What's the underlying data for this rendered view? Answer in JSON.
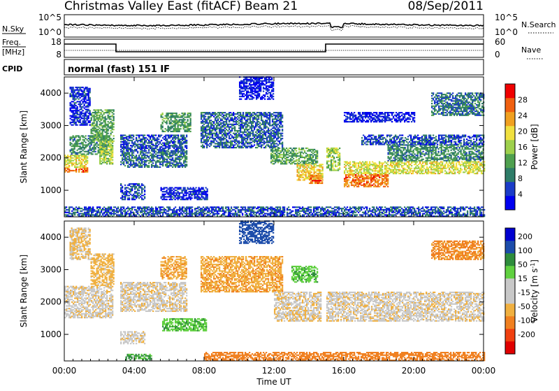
{
  "header": {
    "title": "Christmas Valley East (fitACF)",
    "beam": "Beam 21",
    "date": "08/Sep/2011"
  },
  "panels": {
    "nsky": {
      "left_label": "N.Sky",
      "left_ticks": [
        "10^5",
        "10^0"
      ],
      "right_ticks": [
        "10^5",
        "10^0"
      ],
      "right_label": "N.Search"
    },
    "freq": {
      "left_label_1": "Freq.",
      "left_label_2": "[MHz]",
      "left_ticks": [
        "18",
        "8"
      ],
      "right_ticks": [
        "60",
        "0"
      ],
      "right_label": "Nave"
    },
    "cpid": {
      "label": "CPID",
      "text": "normal (fast) 151 IF"
    }
  },
  "colors": {
    "power": [
      "#0000f0",
      "#1b3cc8",
      "#2e7c68",
      "#4fa04f",
      "#9ed04c",
      "#f0e040",
      "#f0a020",
      "#f06010",
      "#f00000"
    ],
    "velocity": [
      "#e00000",
      "#f04010",
      "#f08020",
      "#f0b040",
      "#c8c8c8",
      "#c8c8c8",
      "#60d040",
      "#2e8c3c",
      "#1c4caa",
      "#0000d0"
    ]
  },
  "chart_data": [
    {
      "type": "heatmap",
      "name": "power",
      "xlabel": "",
      "ylabel": "Slant Range [km]",
      "x_ticks": [
        "00:00",
        "04:00",
        "08:00",
        "12:00",
        "16:00",
        "20:00",
        "00:00"
      ],
      "y_ticks": [
        "1000",
        "2000",
        "3000",
        "4000"
      ],
      "colorbar_label": "Power [dB]",
      "colorbar_ticks": [
        "4",
        "8",
        "12",
        "16",
        "20",
        "24",
        "28"
      ],
      "x_range_hours": [
        0,
        24
      ],
      "y_range_km": [
        180,
        4500
      ],
      "bands": [
        {
          "t": [
            0.0,
            1.3
          ],
          "r": [
            1550,
            1700
          ],
          "v": 27
        },
        {
          "t": [
            0.0,
            1.3
          ],
          "r": [
            1700,
            2100
          ],
          "v": 20
        },
        {
          "t": [
            0.3,
            2.4
          ],
          "r": [
            2100,
            2700
          ],
          "v": 12
        },
        {
          "t": [
            1.5,
            2.8
          ],
          "r": [
            2500,
            3500
          ],
          "v": 14
        },
        {
          "t": [
            2.0,
            2.8
          ],
          "r": [
            1800,
            2500
          ],
          "v": 18
        },
        {
          "t": [
            0.3,
            1.5
          ],
          "r": [
            3000,
            4200
          ],
          "v": 6
        },
        {
          "t": [
            3.2,
            7.0
          ],
          "r": [
            1700,
            2200
          ],
          "v": 10
        },
        {
          "t": [
            3.2,
            7.0
          ],
          "r": [
            2200,
            2700
          ],
          "v": 8
        },
        {
          "t": [
            5.5,
            7.2
          ],
          "r": [
            2800,
            3400
          ],
          "v": 13
        },
        {
          "t": [
            3.2,
            4.6
          ],
          "r": [
            700,
            1200
          ],
          "v": 8
        },
        {
          "t": [
            5.5,
            8.2
          ],
          "r": [
            700,
            1100
          ],
          "v": 6
        },
        {
          "t": [
            7.8,
            12.5
          ],
          "r": [
            2300,
            3400
          ],
          "v": 9
        },
        {
          "t": [
            10.0,
            12.0
          ],
          "r": [
            3800,
            4500
          ],
          "v": 5
        },
        {
          "t": [
            11.8,
            14.5
          ],
          "r": [
            1800,
            2300
          ],
          "v": 14
        },
        {
          "t": [
            13.3,
            14.8
          ],
          "r": [
            1300,
            1800
          ],
          "v": 22
        },
        {
          "t": [
            14.0,
            14.8
          ],
          "r": [
            1200,
            1450
          ],
          "v": 27
        },
        {
          "t": [
            15.0,
            15.8
          ],
          "r": [
            1600,
            2300
          ],
          "v": 17
        },
        {
          "t": [
            16.0,
            18.5
          ],
          "r": [
            1100,
            1500
          ],
          "v": 27
        },
        {
          "t": [
            16.0,
            24.0
          ],
          "r": [
            1500,
            1900
          ],
          "v": 20
        },
        {
          "t": [
            18.5,
            24.0
          ],
          "r": [
            1900,
            2400
          ],
          "v": 12
        },
        {
          "t": [
            17.0,
            24.0
          ],
          "r": [
            2400,
            2700
          ],
          "v": 8
        },
        {
          "t": [
            21.0,
            24.0
          ],
          "r": [
            3300,
            4000
          ],
          "v": 10
        },
        {
          "t": [
            16.0,
            20.0
          ],
          "r": [
            3100,
            3400
          ],
          "v": 5
        },
        {
          "t": [
            0.0,
            24.0
          ],
          "r": [
            180,
            500
          ],
          "v": 8
        }
      ]
    },
    {
      "type": "heatmap",
      "name": "velocity",
      "xlabel": "Time UT",
      "ylabel": "Slant Range [km]",
      "x_ticks": [
        "00:00",
        "04:00",
        "08:00",
        "12:00",
        "16:00",
        "20:00",
        "00:00"
      ],
      "y_ticks": [
        "1000",
        "2000",
        "3000",
        "4000"
      ],
      "colorbar_label": "Velocity [m s^-1]",
      "colorbar_ticks": [
        "200",
        "100",
        "50",
        "15",
        "-15",
        "-50",
        "-100",
        "-200"
      ],
      "x_range_hours": [
        0,
        24
      ],
      "y_range_km": [
        180,
        4500
      ],
      "bands": [
        {
          "t": [
            0.0,
            2.8
          ],
          "r": [
            1500,
            2500
          ],
          "v": -5
        },
        {
          "t": [
            1.5,
            2.8
          ],
          "r": [
            2500,
            3500
          ],
          "v": -30
        },
        {
          "t": [
            0.3,
            1.5
          ],
          "r": [
            3300,
            4300
          ],
          "v": -20
        },
        {
          "t": [
            3.2,
            7.0
          ],
          "r": [
            1700,
            2600
          ],
          "v": -5
        },
        {
          "t": [
            5.5,
            7.0
          ],
          "r": [
            2700,
            3400
          ],
          "v": -40
        },
        {
          "t": [
            5.6,
            8.1
          ],
          "r": [
            1100,
            1500
          ],
          "v": 40
        },
        {
          "t": [
            3.2,
            4.6
          ],
          "r": [
            700,
            1100
          ],
          "v": -5
        },
        {
          "t": [
            7.8,
            12.5
          ],
          "r": [
            2300,
            3400
          ],
          "v": -40
        },
        {
          "t": [
            10.0,
            12.0
          ],
          "r": [
            3800,
            4500
          ],
          "v": 120
        },
        {
          "t": [
            12.0,
            14.7
          ],
          "r": [
            1400,
            2300
          ],
          "v": -10
        },
        {
          "t": [
            13.0,
            14.5
          ],
          "r": [
            2600,
            3100
          ],
          "v": 40
        },
        {
          "t": [
            15.0,
            24.0
          ],
          "r": [
            1400,
            2300
          ],
          "v": -5
        },
        {
          "t": [
            21.0,
            24.0
          ],
          "r": [
            3300,
            3900
          ],
          "v": -60
        },
        {
          "t": [
            3.5,
            5.0
          ],
          "r": [
            200,
            400
          ],
          "v": 60
        },
        {
          "t": [
            8.0,
            24.0
          ],
          "r": [
            180,
            450
          ],
          "v": -80
        }
      ]
    }
  ]
}
